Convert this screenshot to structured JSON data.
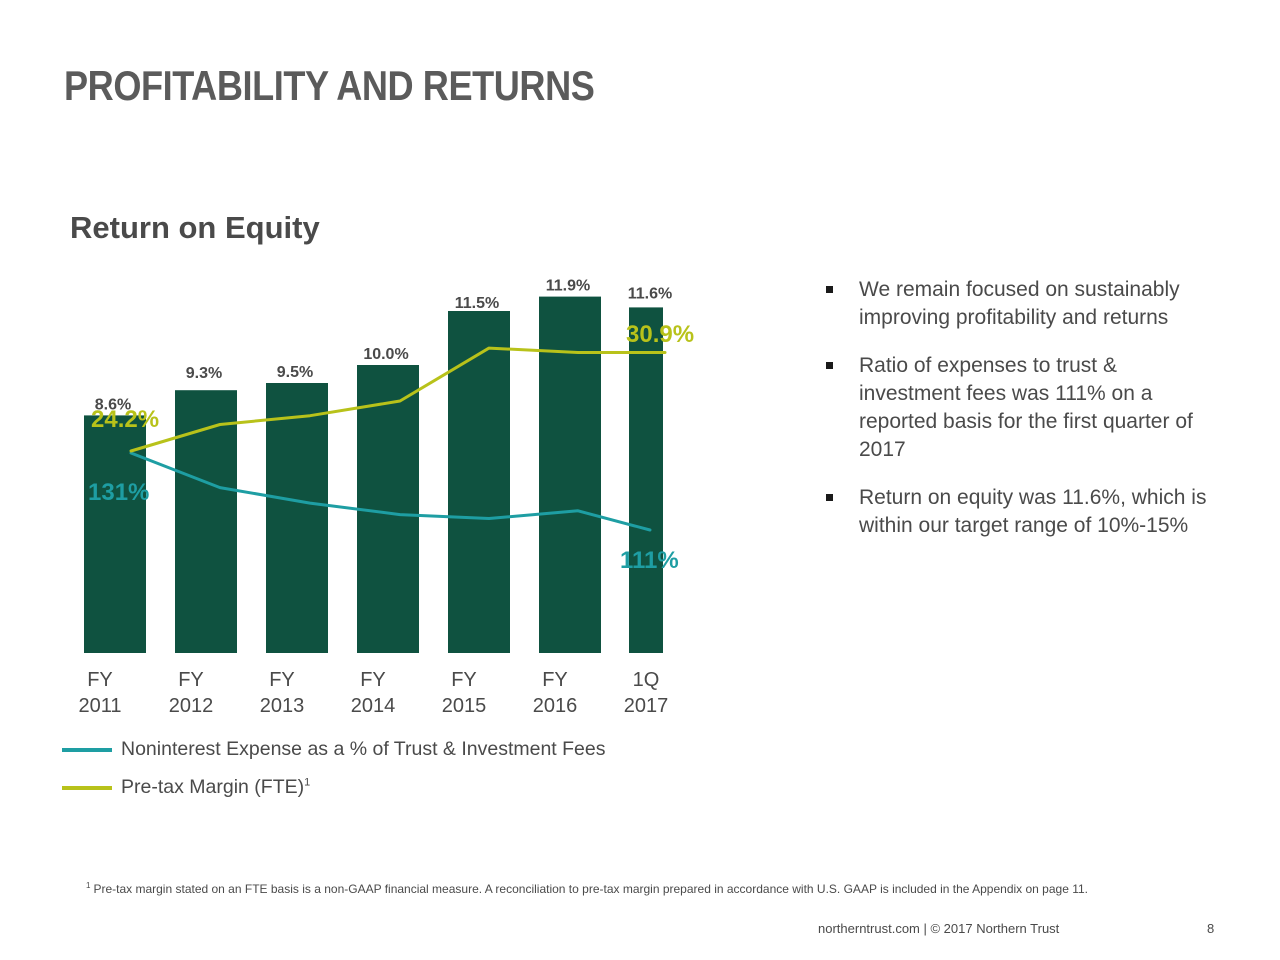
{
  "page": {
    "title": "PROFITABILITY AND RETURNS",
    "chart_title": "Return on Equity"
  },
  "colors": {
    "bar": "#0f5240",
    "expense_line": "#1e9ea3",
    "margin_line": "#b8c21a",
    "text": "#4a4a4a"
  },
  "chart_data": {
    "type": "bar",
    "title": "Return on Equity",
    "categories": [
      "FY 2011",
      "FY 2012",
      "FY 2013",
      "FY 2014",
      "FY 2015",
      "FY 2016",
      "1Q 2017"
    ],
    "category_labels": [
      [
        "FY",
        "2011"
      ],
      [
        "FY",
        "2012"
      ],
      [
        "FY",
        "2013"
      ],
      [
        "FY",
        "2014"
      ],
      [
        "FY",
        "2015"
      ],
      [
        "FY",
        "2016"
      ],
      [
        "1Q",
        "2017"
      ]
    ],
    "series": [
      {
        "name": "Return on Equity",
        "type": "bar",
        "values": [
          8.6,
          9.3,
          9.5,
          10.0,
          11.5,
          11.9,
          11.6
        ],
        "labels": [
          "8.6%",
          "9.3%",
          "9.5%",
          "10.0%",
          "11.5%",
          "11.9%",
          "11.6%"
        ]
      },
      {
        "name": "Noninterest Expense as a % of Trust & Investment Fees",
        "type": "line",
        "values": [
          131,
          122,
          118,
          115,
          114,
          116,
          111
        ],
        "start_label": "131%",
        "end_label": "111%"
      },
      {
        "name": "Pre-tax Margin (FTE)",
        "type": "line",
        "values": [
          24.2,
          26.0,
          26.6,
          27.6,
          31.2,
          30.9,
          30.9
        ],
        "start_label": "24.2%",
        "end_label": "30.9%"
      }
    ]
  },
  "legend": [
    {
      "label": "Noninterest Expense as a % of Trust & Investment Fees",
      "sup": "",
      "color": "#1e9ea3"
    },
    {
      "label": "Pre-tax Margin (FTE)",
      "sup": "1",
      "color": "#b8c21a"
    }
  ],
  "bullets": [
    "We remain focused on sustainably improving profitability and returns",
    "Ratio of expenses to trust & investment fees was 111% on a reported basis for the first quarter of 2017",
    "Return on equity was 11.6%, which is within our target range of 10%-15%"
  ],
  "footnote": {
    "marker": "1",
    "text": "Pre-tax margin stated on an FTE basis is a non-GAAP financial measure. A reconciliation to pre-tax margin prepared in accordance with U.S. GAAP is included in the Appendix on page 11."
  },
  "footer": {
    "text": "northerntrust.com  |  © 2017 Northern Trust",
    "page_number": "8"
  }
}
